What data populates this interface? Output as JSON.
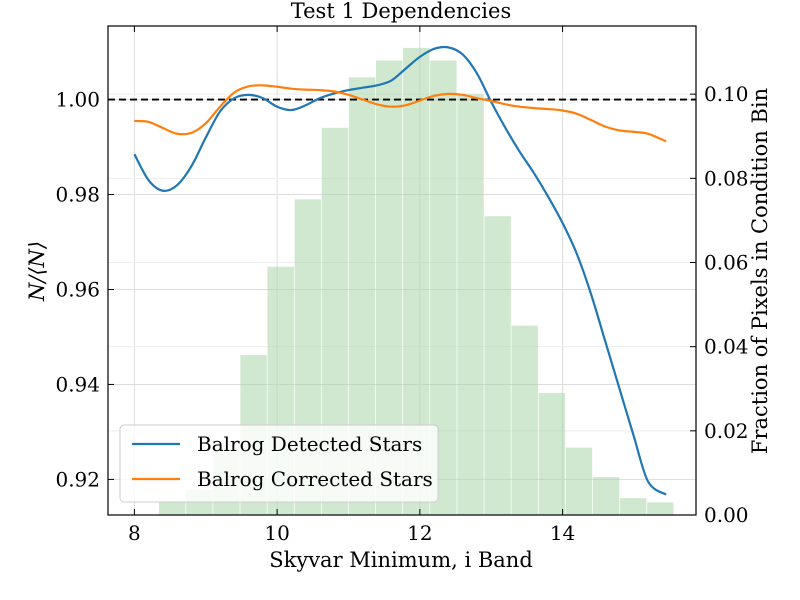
{
  "chart_data": {
    "type": "bar+line",
    "title": "Test 1 Dependencies",
    "xlabel": "Skyvar Minimum, i Band",
    "ylabel_left": "N/⟨N⟩",
    "ylabel_right": "Fraction of Pixels in Condition Bin",
    "xlim": [
      7.63,
      15.87
    ],
    "ylim_left": [
      0.9125,
      1.0155
    ],
    "ylim_right": [
      0.0,
      0.1162
    ],
    "x_ticks": [
      8,
      10,
      12,
      14
    ],
    "x_tick_labels": [
      "8",
      "10",
      "12",
      "14"
    ],
    "y_left_ticks": [
      0.92,
      0.94,
      0.96,
      0.98,
      1.0
    ],
    "y_left_tick_labels": [
      "0.92",
      "0.94",
      "0.96",
      "0.98",
      "1.00"
    ],
    "y_right_ticks": [
      0.0,
      0.02,
      0.04,
      0.06,
      0.08,
      0.1
    ],
    "y_right_tick_labels": [
      "0.00",
      "0.02",
      "0.04",
      "0.06",
      "0.08",
      "0.10"
    ],
    "grid": true,
    "legend_position": "lower-left",
    "reference_line": {
      "y": 1.0,
      "style": "dashed",
      "color": "#000000"
    },
    "histogram": {
      "color": "#a8d5a8",
      "bin_width": 0.37,
      "x": [
        8.53,
        8.91,
        9.29,
        9.67,
        10.05,
        10.43,
        10.81,
        11.19,
        11.57,
        11.95,
        12.33,
        12.71,
        13.09,
        13.47,
        13.85,
        14.23,
        14.61,
        14.99,
        15.37
      ],
      "values": [
        0.003,
        0.006,
        0.016,
        0.038,
        0.059,
        0.075,
        0.092,
        0.104,
        0.108,
        0.111,
        0.108,
        0.1,
        0.071,
        0.045,
        0.029,
        0.016,
        0.009,
        0.004,
        0.003
      ]
    },
    "series": [
      {
        "name": "Balrog Detected Stars",
        "color": "#1f77b4",
        "x": [
          8.0,
          8.2,
          8.4,
          8.6,
          8.8,
          9.0,
          9.2,
          9.4,
          9.6,
          9.8,
          10.0,
          10.2,
          10.4,
          10.6,
          10.8,
          11.0,
          11.2,
          11.4,
          11.6,
          11.8,
          12.0,
          12.2,
          12.4,
          12.6,
          12.8,
          13.0,
          13.2,
          13.4,
          13.6,
          13.8,
          14.0,
          14.2,
          14.4,
          14.6,
          14.8,
          15.0,
          15.2,
          15.45
        ],
        "y": [
          0.9885,
          0.983,
          0.9808,
          0.982,
          0.986,
          0.992,
          0.9975,
          1.0003,
          1.001,
          1.0003,
          0.9985,
          0.9978,
          0.9988,
          1.0003,
          1.0013,
          1.002,
          1.0025,
          1.003,
          1.004,
          1.0065,
          1.009,
          1.0107,
          1.011,
          1.0095,
          1.0055,
          0.9995,
          0.994,
          0.989,
          0.9845,
          0.9795,
          0.974,
          0.9675,
          0.959,
          0.949,
          0.939,
          0.929,
          0.9195,
          0.9168
        ]
      },
      {
        "name": "Balrog Corrected Stars",
        "color": "#ff7f0e",
        "x": [
          8.0,
          8.2,
          8.4,
          8.6,
          8.8,
          9.0,
          9.2,
          9.4,
          9.6,
          9.8,
          10.0,
          10.2,
          10.4,
          10.6,
          10.8,
          11.0,
          11.2,
          11.4,
          11.6,
          11.8,
          12.0,
          12.2,
          12.4,
          12.6,
          12.8,
          13.0,
          13.2,
          13.4,
          13.6,
          13.8,
          14.0,
          14.2,
          14.4,
          14.6,
          14.8,
          15.0,
          15.2,
          15.45
        ],
        "y": [
          0.9955,
          0.9953,
          0.994,
          0.9928,
          0.993,
          0.995,
          0.9985,
          1.0015,
          1.0028,
          1.003,
          1.0027,
          1.0023,
          1.0021,
          1.002,
          1.0017,
          1.001,
          1.0,
          0.999,
          0.9985,
          0.9988,
          0.9998,
          1.0008,
          1.0012,
          1.001,
          1.0003,
          0.9997,
          0.999,
          0.9985,
          0.9982,
          0.998,
          0.9977,
          0.997,
          0.9957,
          0.9943,
          0.9935,
          0.9932,
          0.9928,
          0.9912
        ]
      }
    ]
  }
}
